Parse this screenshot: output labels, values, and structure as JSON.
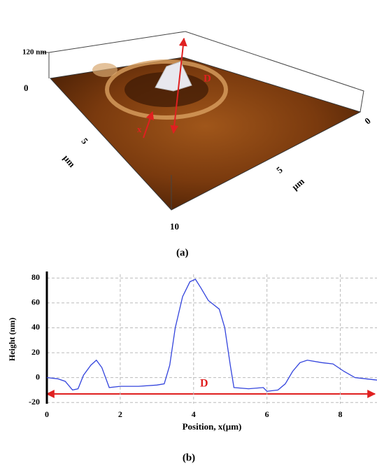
{
  "panel_a": {
    "z_top": "120 nm",
    "z_bottom": "0",
    "left_tick": "5",
    "left_unit": "µm",
    "corner_label": "10",
    "right_tick": "5",
    "right_unit": "µm",
    "right_corner": "0",
    "line_label": "D",
    "arrow_label": "x",
    "caption": "(a)"
  },
  "chart_data": {
    "type": "line",
    "ylabel": "Height (nm)",
    "xlabel": "Position, x(µm)",
    "annotation": "D",
    "caption": "(b)",
    "x": [
      0,
      0.3,
      0.5,
      0.7,
      0.85,
      1.0,
      1.2,
      1.35,
      1.5,
      1.7,
      2.0,
      2.5,
      3.0,
      3.2,
      3.35,
      3.5,
      3.7,
      3.9,
      4.05,
      4.2,
      4.4,
      4.7,
      4.85,
      5.0,
      5.1,
      5.5,
      5.9,
      6.0,
      6.3,
      6.5,
      6.7,
      6.9,
      7.1,
      7.5,
      7.8,
      8.1,
      8.4,
      8.7,
      9.0
    ],
    "values": [
      0,
      -1,
      -3,
      -10,
      -9,
      2,
      10,
      14,
      8,
      -8,
      -7,
      -7,
      -6,
      -5,
      10,
      40,
      65,
      77,
      79,
      72,
      62,
      55,
      40,
      10,
      -8,
      -9,
      -8,
      -11,
      -10,
      -5,
      5,
      12,
      14,
      12,
      11,
      5,
      0,
      -1,
      -2
    ],
    "color": "#3344dd",
    "xlim": [
      0,
      9
    ],
    "ylim": [
      -21,
      83
    ],
    "xticks": [
      0,
      2,
      4,
      6,
      8
    ],
    "yticks": [
      -20,
      0,
      20,
      40,
      60,
      80
    ],
    "grid": true
  }
}
